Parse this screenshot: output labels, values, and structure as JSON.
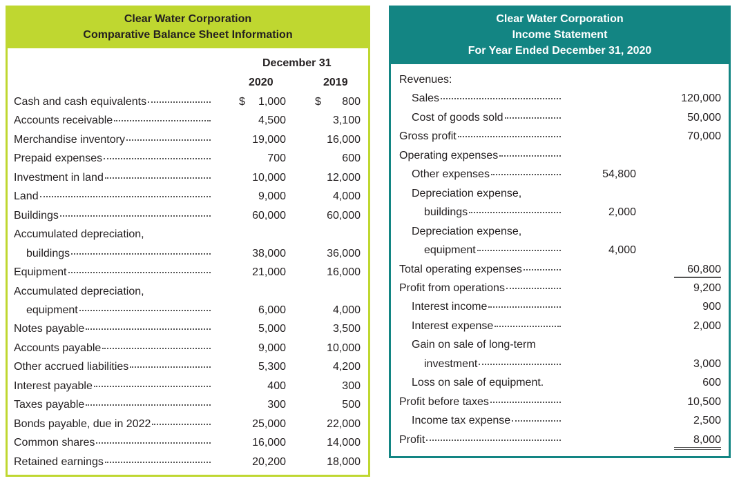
{
  "balance_sheet": {
    "company": "Clear Water Corporation",
    "title": "Comparative Balance Sheet Information",
    "period_header": "December 31",
    "years": [
      "2020",
      "2019"
    ],
    "rows": [
      {
        "label": "Cash and cash equivalents",
        "v2020": "$ 1,000",
        "v2019": "$     800",
        "indent": 0,
        "leader": true
      },
      {
        "label": "Accounts receivable",
        "v2020": "4,500",
        "v2019": "3,100",
        "indent": 0,
        "leader": true
      },
      {
        "label": "Merchandise inventory",
        "v2020": "19,000",
        "v2019": "16,000",
        "indent": 0,
        "leader": true
      },
      {
        "label": "Prepaid expenses",
        "v2020": "700",
        "v2019": "600",
        "indent": 0,
        "leader": true
      },
      {
        "label": "Investment in land",
        "v2020": "10,000",
        "v2019": "12,000",
        "indent": 0,
        "leader": true
      },
      {
        "label": "Land",
        "v2020": "9,000",
        "v2019": "4,000",
        "indent": 0,
        "leader": true
      },
      {
        "label": "Buildings",
        "v2020": "60,000",
        "v2019": "60,000",
        "indent": 0,
        "leader": true
      },
      {
        "label": "Accumulated depreciation,",
        "v2020": "",
        "v2019": "",
        "indent": 0,
        "leader": false
      },
      {
        "label": "buildings",
        "v2020": "38,000",
        "v2019": "36,000",
        "indent": 1,
        "leader": true
      },
      {
        "label": "Equipment",
        "v2020": "21,000",
        "v2019": "16,000",
        "indent": 0,
        "leader": true
      },
      {
        "label": "Accumulated depreciation,",
        "v2020": "",
        "v2019": "",
        "indent": 0,
        "leader": false
      },
      {
        "label": "equipment",
        "v2020": "6,000",
        "v2019": "4,000",
        "indent": 1,
        "leader": true
      },
      {
        "label": "Notes payable",
        "v2020": "5,000",
        "v2019": "3,500",
        "indent": 0,
        "leader": true
      },
      {
        "label": "Accounts payable",
        "v2020": "9,000",
        "v2019": "10,000",
        "indent": 0,
        "leader": true
      },
      {
        "label": "Other accrued liabilities",
        "v2020": "5,300",
        "v2019": "4,200",
        "indent": 0,
        "leader": true
      },
      {
        "label": "Interest payable",
        "v2020": "400",
        "v2019": "300",
        "indent": 0,
        "leader": true
      },
      {
        "label": "Taxes payable",
        "v2020": "300",
        "v2019": "500",
        "indent": 0,
        "leader": true
      },
      {
        "label": "Bonds payable, due in 2022",
        "v2020": "25,000",
        "v2019": "22,000",
        "indent": 0,
        "leader": true
      },
      {
        "label": "Common shares",
        "v2020": "16,000",
        "v2019": "14,000",
        "indent": 0,
        "leader": true
      },
      {
        "label": "Retained earnings",
        "v2020": "20,200",
        "v2019": "18,000",
        "indent": 0,
        "leader": true
      }
    ]
  },
  "income_statement": {
    "company": "Clear Water Corporation",
    "title": "Income Statement",
    "period": "For Year Ended December 31, 2020",
    "rows": [
      {
        "label": "Revenues:",
        "mid": "",
        "right": "",
        "indent": 0,
        "leader": false
      },
      {
        "label": "Sales",
        "mid": "",
        "right": "120,000",
        "indent": 1,
        "leader": true
      },
      {
        "label": "Cost of goods sold",
        "mid": "",
        "right": "50,000",
        "indent": 1,
        "leader": true
      },
      {
        "label": "Gross profit",
        "mid": "",
        "right": "70,000",
        "indent": 0,
        "leader": true
      },
      {
        "label": "Operating expenses",
        "mid": "",
        "right": "",
        "indent": 0,
        "leader": true
      },
      {
        "label": "Other expenses",
        "mid": "54,800",
        "right": "",
        "indent": 1,
        "leader": true
      },
      {
        "label": "Depreciation expense,",
        "mid": "",
        "right": "",
        "indent": 1,
        "leader": false
      },
      {
        "label": "buildings",
        "mid": "2,000",
        "right": "",
        "indent": 2,
        "leader": true
      },
      {
        "label": "Depreciation expense,",
        "mid": "",
        "right": "",
        "indent": 1,
        "leader": false
      },
      {
        "label": "equipment",
        "mid": "4,000",
        "right": "",
        "indent": 2,
        "leader": true
      },
      {
        "label": "Total operating expenses",
        "mid": "",
        "right": "60,800",
        "indent": 0,
        "leader": true,
        "rule": "single"
      },
      {
        "label": "Profit from operations",
        "mid": "",
        "right": "9,200",
        "indent": 0,
        "leader": true
      },
      {
        "label": "Interest income",
        "mid": "",
        "right": "900",
        "indent": 1,
        "leader": true
      },
      {
        "label": "Interest expense",
        "mid": "",
        "right": "2,000",
        "indent": 1,
        "leader": true
      },
      {
        "label": "Gain on sale of long-term",
        "mid": "",
        "right": "",
        "indent": 1,
        "leader": false
      },
      {
        "label": "investment",
        "mid": "",
        "right": "3,000",
        "indent": 2,
        "leader": true
      },
      {
        "label": "Loss on sale of equipment.",
        "mid": "",
        "right": "600",
        "indent": 1,
        "leader": false
      },
      {
        "label": "Profit before taxes",
        "mid": "",
        "right": "10,500",
        "indent": 0,
        "leader": true
      },
      {
        "label": "Income tax expense",
        "mid": "",
        "right": "2,500",
        "indent": 1,
        "leader": true
      },
      {
        "label": "Profit",
        "mid": "",
        "right": "8,000",
        "indent": 0,
        "leader": true,
        "rule": "double"
      }
    ]
  },
  "colors": {
    "balance_header": "#bfd730",
    "income_header": "#138583"
  }
}
